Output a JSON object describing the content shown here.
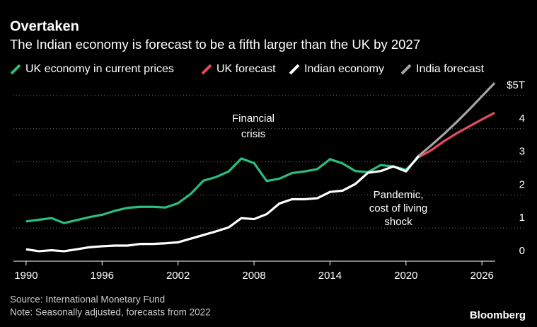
{
  "chart_data": {
    "type": "line",
    "title": "Overtaken",
    "subtitle": "The Indian economy is forecast to be a fifth larger than the UK by 2027",
    "x": [
      1990,
      1991,
      1992,
      1993,
      1994,
      1995,
      1996,
      1997,
      1998,
      1999,
      2000,
      2001,
      2002,
      2003,
      2004,
      2005,
      2006,
      2007,
      2008,
      2009,
      2010,
      2011,
      2012,
      2013,
      2014,
      2015,
      2016,
      2017,
      2018,
      2019,
      2020,
      2021,
      2022,
      2023,
      2024,
      2025,
      2026,
      2027
    ],
    "series": [
      {
        "name": "UK economy in current prices",
        "color": "#2bbd7e",
        "values": [
          1.2,
          1.25,
          1.3,
          1.15,
          1.24,
          1.33,
          1.4,
          1.52,
          1.61,
          1.64,
          1.64,
          1.62,
          1.75,
          2.03,
          2.43,
          2.54,
          2.71,
          3.1,
          2.96,
          2.42,
          2.49,
          2.66,
          2.71,
          2.78,
          3.08,
          2.95,
          2.72,
          2.69,
          2.9,
          2.86,
          2.76,
          3.14,
          null,
          null,
          null,
          null,
          null,
          null
        ]
      },
      {
        "name": "UK forecast",
        "color": "#e84a5f",
        "values": [
          null,
          null,
          null,
          null,
          null,
          null,
          null,
          null,
          null,
          null,
          null,
          null,
          null,
          null,
          null,
          null,
          null,
          null,
          null,
          null,
          null,
          null,
          null,
          null,
          null,
          null,
          null,
          null,
          null,
          null,
          null,
          3.14,
          3.35,
          3.62,
          3.86,
          4.07,
          4.28,
          4.48
        ]
      },
      {
        "name": "Indian economy",
        "color": "#ffffff",
        "values": [
          0.36,
          0.3,
          0.33,
          0.3,
          0.36,
          0.42,
          0.45,
          0.47,
          0.47,
          0.52,
          0.52,
          0.54,
          0.57,
          0.68,
          0.79,
          0.9,
          1.02,
          1.3,
          1.27,
          1.42,
          1.74,
          1.87,
          1.87,
          1.9,
          2.09,
          2.13,
          2.33,
          2.67,
          2.72,
          2.86,
          2.71,
          3.18,
          null,
          null,
          null,
          null,
          null,
          null
        ]
      },
      {
        "name": "India forecast",
        "color": "#a6a6a6",
        "values": [
          null,
          null,
          null,
          null,
          null,
          null,
          null,
          null,
          null,
          null,
          null,
          null,
          null,
          null,
          null,
          null,
          null,
          null,
          null,
          null,
          null,
          null,
          null,
          null,
          null,
          null,
          null,
          null,
          null,
          null,
          null,
          3.18,
          3.5,
          3.84,
          4.2,
          4.58,
          4.98,
          5.38
        ]
      }
    ],
    "xlim": [
      1989,
      2028
    ],
    "xticks": [
      1990,
      1996,
      2002,
      2008,
      2014,
      2020,
      2026
    ],
    "ylim": [
      0,
      5.6
    ],
    "yticks": [
      0,
      1,
      2,
      3,
      4,
      {
        "value": 5,
        "label": "$5T"
      }
    ],
    "grid": true,
    "annotations": [
      {
        "lines": [
          "Financial",
          "crisis"
        ]
      },
      {
        "lines": [
          "Pandemic,",
          "cost of living",
          "shock"
        ]
      }
    ],
    "source": "Source: International Monetary Fund",
    "note": "Note: Seasonally adjusted, forecasts from 2022",
    "credit": "Bloomberg"
  }
}
